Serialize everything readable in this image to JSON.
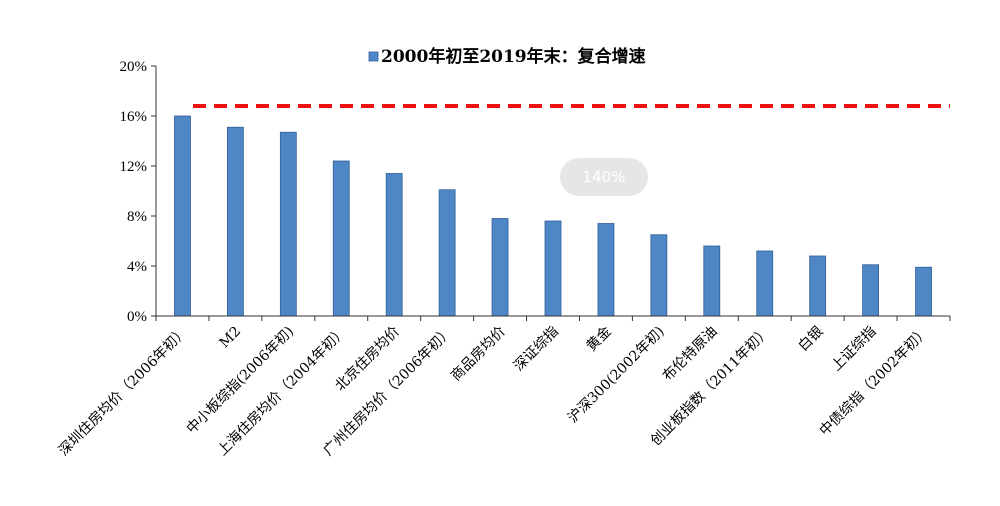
{
  "zoom": "140%",
  "colors": {
    "bar": "#4f86c6",
    "bar_edge": "#2f5f9a",
    "reference_line": "#ee1111",
    "axis": "#333333"
  },
  "chart_data": {
    "type": "bar",
    "legend": {
      "label": "2000年初至2019年末：复合增速",
      "position": "top-center"
    },
    "categories": [
      "深圳住房均价（2006年初）",
      "M2",
      "中小板综指(2006年初)",
      "上海住房均价（2004年初）",
      "北京住房均价",
      "广州住房均价（2006年初）",
      "商品房均价",
      "深证综指",
      "黄金",
      "沪深300(2002年初)",
      "布伦特原油",
      "创业板指数（2011年初）",
      "白银",
      "上证综指",
      "中债综指（2002年初）"
    ],
    "series": [
      {
        "name": "2000年初至2019年末：复合增速",
        "values": [
          16.0,
          15.1,
          14.7,
          12.4,
          11.4,
          10.1,
          7.8,
          7.6,
          7.4,
          6.5,
          5.6,
          5.2,
          4.8,
          4.1,
          3.9
        ]
      }
    ],
    "reference_line": {
      "value": 16.8,
      "style": "dashed"
    },
    "y_ticks": [
      "0%",
      "4%",
      "8%",
      "12%",
      "16%",
      "20%"
    ],
    "ylim": [
      0,
      20
    ],
    "grid": false
  }
}
